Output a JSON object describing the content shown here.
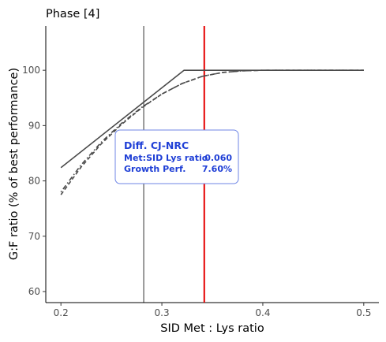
{
  "chart_data": {
    "type": "line",
    "title": "Phase [4]",
    "xlabel": "SID Met : Lys ratio",
    "ylabel": "G:F ratio (% of best performance)",
    "xlim": [
      0.185,
      0.515
    ],
    "ylim": [
      58,
      108
    ],
    "x_ticks": [
      0.2,
      0.3,
      0.4,
      0.5
    ],
    "x_tick_labels": [
      "0.2",
      "0.3",
      "0.4",
      "0.5"
    ],
    "y_ticks": [
      60,
      70,
      80,
      90,
      100
    ],
    "y_tick_labels": [
      "60",
      "70",
      "80",
      "90",
      "100"
    ],
    "grid": false,
    "series": [
      {
        "style": "solid",
        "color": "#4a4a4a",
        "x": [
          0.2,
          0.322,
          0.5
        ],
        "y": [
          82.4,
          100.0,
          100.0
        ]
      },
      {
        "style": "dashed",
        "color": "#4a4a4a",
        "x": [
          0.2,
          0.22,
          0.24,
          0.26,
          0.28,
          0.3,
          0.32,
          0.34,
          0.36,
          0.38,
          0.4,
          0.45,
          0.5
        ],
        "y": [
          77.5,
          82.5,
          86.7,
          90.2,
          93.2,
          95.7,
          97.6,
          98.9,
          99.6,
          99.9,
          100.0,
          100.0,
          100.0
        ]
      },
      {
        "style": "dotdash",
        "color": "#4a4a4a",
        "x": [
          0.2,
          0.22,
          0.24,
          0.26,
          0.28,
          0.3,
          0.32,
          0.34,
          0.36,
          0.38,
          0.4,
          0.45,
          0.5
        ],
        "y": [
          78.0,
          82.9,
          87.0,
          90.4,
          93.3,
          95.7,
          97.6,
          98.9,
          99.6,
          99.9,
          100.0,
          100.0,
          100.0
        ]
      }
    ],
    "vlines": [
      {
        "x": 0.282,
        "color": "#000000"
      },
      {
        "x": 0.342,
        "color": "#e60000"
      }
    ],
    "annotation": {
      "title": "Diff. CJ-NRC",
      "rows": [
        {
          "label": "Met:SID Lys ratio",
          "value": "0.060"
        },
        {
          "label": "Growth Perf.",
          "value": "7.60%"
        }
      ],
      "text_color": "#1f3fd6",
      "border_color": "#6f86e6"
    }
  }
}
